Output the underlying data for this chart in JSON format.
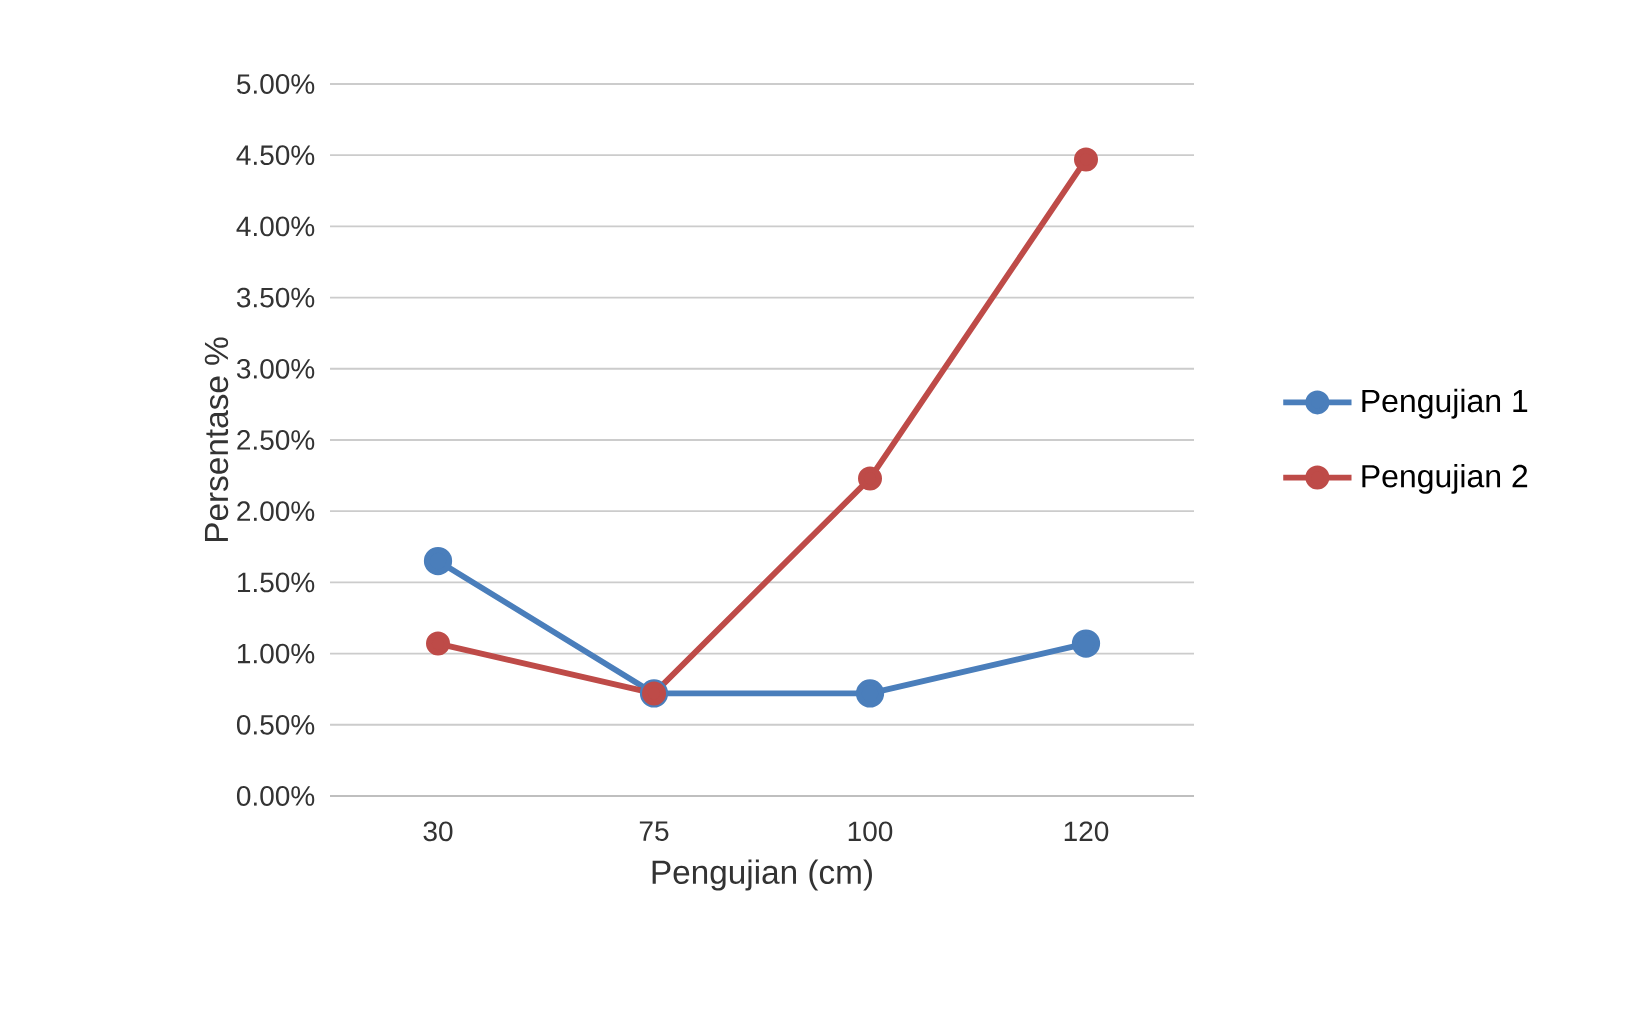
{
  "chart_data": {
    "type": "line",
    "xlabel": "Pengujian (cm)",
    "ylabel": "Persentase %",
    "categories": [
      "30",
      "75",
      "100",
      "120"
    ],
    "series": [
      {
        "name": "Pengujian 1",
        "color": "#4a7ebb",
        "values": [
          1.65,
          0.72,
          0.72,
          1.07
        ]
      },
      {
        "name": "Pengujian 2",
        "color": "#be4b48",
        "values": [
          1.07,
          0.72,
          2.23,
          4.47
        ]
      }
    ],
    "ylim": [
      0,
      5
    ],
    "yticks": [
      {
        "value": 0,
        "label": "0.00%"
      },
      {
        "value": 0.5,
        "label": "0.50%"
      },
      {
        "value": 1,
        "label": "1.00%"
      },
      {
        "value": 1.5,
        "label": "1.50%"
      },
      {
        "value": 2,
        "label": "2.00%"
      },
      {
        "value": 2.5,
        "label": "2.50%"
      },
      {
        "value": 3,
        "label": "3.00%"
      },
      {
        "value": 3.5,
        "label": "3.50%"
      },
      {
        "value": 4,
        "label": "4.00%"
      },
      {
        "value": 4.5,
        "label": "4.50%"
      },
      {
        "value": 5,
        "label": "5.00%"
      }
    ],
    "grid": "y",
    "legend": "right",
    "marker": "circle",
    "line_style": "solid"
  }
}
